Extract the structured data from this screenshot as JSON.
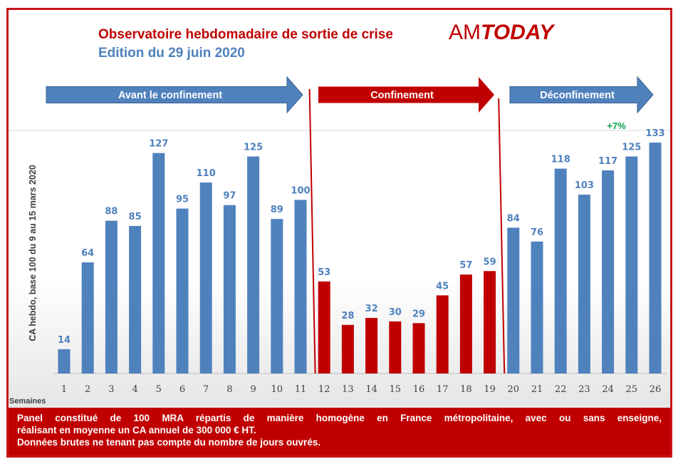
{
  "header": {
    "title": "Observatoire hebdomadaire de sortie de crise",
    "subtitle": "Edition du 29 juin 2020",
    "logo_am": "AM",
    "logo_today": "TODAY"
  },
  "phases": [
    {
      "label": "Avant le confinement",
      "color": "#4f81bd"
    },
    {
      "label": "Confinement",
      "color": "#c00000"
    },
    {
      "label": "Déconfinement",
      "color": "#4f81bd"
    }
  ],
  "chart_data": {
    "type": "bar",
    "ylabel": "CA hebdo, base 100 du 9 au 15 mars 2020",
    "xlabel": "Semaines",
    "categories": [
      "1",
      "2",
      "3",
      "4",
      "5",
      "6",
      "7",
      "8",
      "9",
      "10",
      "11",
      "12",
      "13",
      "14",
      "15",
      "16",
      "17",
      "18",
      "19",
      "20",
      "21",
      "22",
      "23",
      "24",
      "25",
      "26"
    ],
    "values": [
      14,
      64,
      88,
      85,
      127,
      95,
      110,
      97,
      125,
      89,
      100,
      53,
      28,
      32,
      30,
      29,
      45,
      57,
      59,
      84,
      76,
      118,
      103,
      117,
      125,
      133
    ],
    "phase_of_week": [
      0,
      0,
      0,
      0,
      0,
      0,
      0,
      0,
      0,
      0,
      0,
      1,
      1,
      1,
      1,
      1,
      1,
      1,
      1,
      2,
      2,
      2,
      2,
      2,
      2,
      2
    ],
    "ylim": [
      0,
      140
    ],
    "grid": false,
    "annotation": {
      "text": "+7%",
      "week": "24",
      "color": "#00a04a"
    },
    "colors": {
      "blue": "#4f81bd",
      "red": "#c00000",
      "label": "#4f81bd",
      "tick": "#404040"
    }
  },
  "footer": {
    "line1": "Panel constitué de 100 MRA répartis de manière homogène en France métropolitaine, avec ou sans enseigne,",
    "line2": "réalisant en moyenne un CA annuel de 300 000 € HT.",
    "line3": "Données brutes ne tenant pas compte du nombre de jours ouvrés."
  }
}
